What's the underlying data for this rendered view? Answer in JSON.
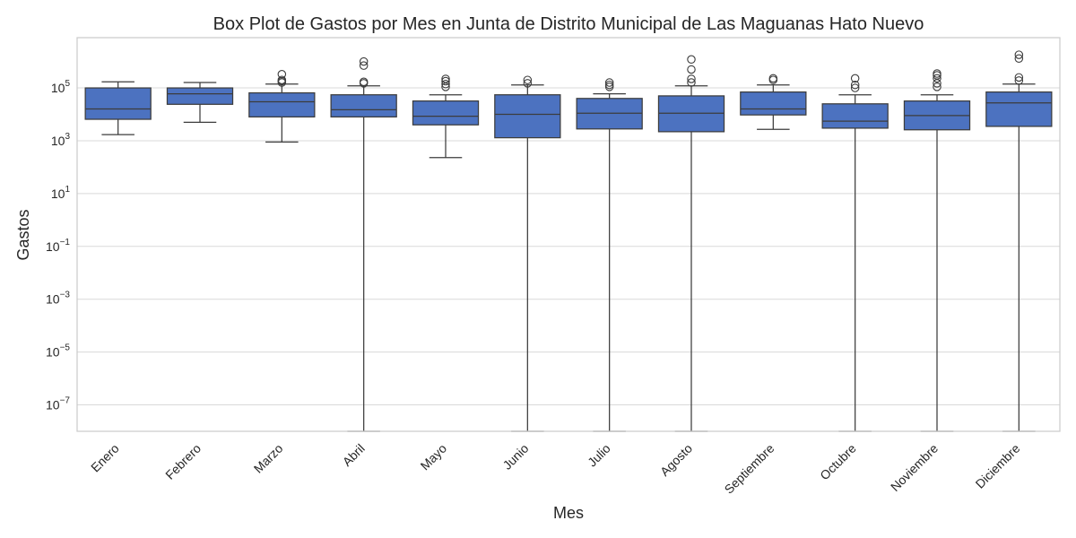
{
  "chart_data": {
    "type": "box",
    "title": "Box Plot de Gastos por Mes en Junta de Distrito Municipal de Las Maguanas Hato Nuevo",
    "xlabel": "Mes",
    "ylabel": "Gastos",
    "yscale": "log",
    "ylim": [
      1e-08,
      8000000.0
    ],
    "yticks": [
      {
        "value": 100000.0,
        "base": "10",
        "exp": "5"
      },
      {
        "value": 1000.0,
        "base": "10",
        "exp": "3"
      },
      {
        "value": 10.0,
        "base": "10",
        "exp": "1"
      },
      {
        "value": 0.1,
        "base": "10",
        "exp": "−1"
      },
      {
        "value": 0.001,
        "base": "10",
        "exp": "−3"
      },
      {
        "value": 1e-05,
        "base": "10",
        "exp": "−5"
      },
      {
        "value": 1e-07,
        "base": "10",
        "exp": "−7"
      }
    ],
    "grid": true,
    "box_color": "#4c72c0",
    "line_color": "#3c3c3c",
    "categories": [
      "Enero",
      "Febrero",
      "Marzo",
      "Abril",
      "Mayo",
      "Junio",
      "Julio",
      "Agosto",
      "Septiembre",
      "Octubre",
      "Noviembre",
      "Diciembre"
    ],
    "boxes": [
      {
        "whisker_low": 1700,
        "q1": 6500,
        "median": 16000,
        "q3": 100000,
        "whisker_high": 170000,
        "outliers": []
      },
      {
        "whisker_low": 5000,
        "q1": 24000,
        "median": 60000,
        "q3": 100000,
        "whisker_high": 160000,
        "outliers": []
      },
      {
        "whisker_low": 900,
        "q1": 8000,
        "median": 30000,
        "q3": 65000,
        "whisker_high": 140000,
        "outliers": [
          160000,
          180000,
          200000,
          330000
        ]
      },
      {
        "whisker_low": 1e-08,
        "q1": 8000,
        "median": 15000,
        "q3": 55000,
        "whisker_high": 120000,
        "outliers": [
          150000,
          170000,
          700000,
          1000000
        ]
      },
      {
        "whisker_low": 230,
        "q1": 4000,
        "median": 8500,
        "q3": 32000,
        "whisker_high": 55000,
        "outliers": [
          110000,
          140000,
          180000,
          220000
        ]
      },
      {
        "whisker_low": 1e-08,
        "q1": 1300,
        "median": 10000,
        "q3": 55000,
        "whisker_high": 130000,
        "outliers": [
          150000,
          200000
        ]
      },
      {
        "whisker_low": 1e-08,
        "q1": 2800,
        "median": 11000,
        "q3": 40000,
        "whisker_high": 60000,
        "outliers": [
          110000,
          130000,
          160000
        ]
      },
      {
        "whisker_low": 1e-08,
        "q1": 2200,
        "median": 11000,
        "q3": 50000,
        "whisker_high": 120000,
        "outliers": [
          160000,
          220000,
          500000,
          1200000
        ]
      },
      {
        "whisker_low": 2700,
        "q1": 9500,
        "median": 16000,
        "q3": 70000,
        "whisker_high": 130000,
        "outliers": [
          200000,
          230000
        ]
      },
      {
        "whisker_low": 1e-08,
        "q1": 3000,
        "median": 5500,
        "q3": 25000,
        "whisker_high": 55000,
        "outliers": [
          100000,
          130000,
          230000
        ]
      },
      {
        "whisker_low": 1e-08,
        "q1": 2600,
        "median": 9000,
        "q3": 32000,
        "whisker_high": 55000,
        "outliers": [
          110000,
          150000,
          230000,
          300000,
          350000
        ]
      },
      {
        "whisker_low": 1e-08,
        "q1": 3500,
        "median": 27000,
        "q3": 70000,
        "whisker_high": 140000,
        "outliers": [
          190000,
          250000,
          1300000,
          1800000
        ]
      }
    ]
  }
}
